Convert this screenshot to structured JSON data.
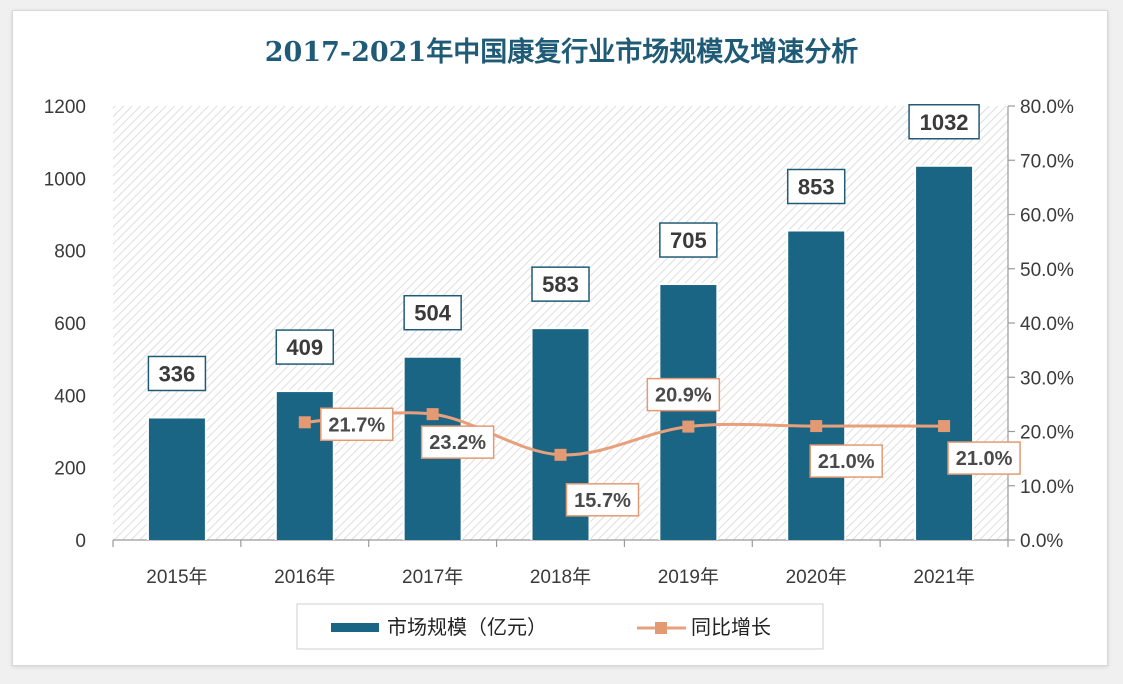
{
  "chart_data": {
    "type": "bar",
    "title": "2017-2021年中国康复行业市场规模及增速分析",
    "categories": [
      "2015年",
      "2016年",
      "2017年",
      "2018年",
      "2019年",
      "2020年",
      "2021年"
    ],
    "series": [
      {
        "name": "市场规模（亿元）",
        "type": "bar",
        "axis": "left",
        "color": "#1b6584",
        "values": [
          336,
          409,
          504,
          583,
          705,
          853,
          1032
        ]
      },
      {
        "name": "同比增长",
        "type": "line",
        "axis": "right",
        "color": "#e8a07c",
        "values": [
          null,
          21.7,
          23.2,
          15.7,
          20.9,
          21.0,
          21.0
        ],
        "labels": [
          null,
          "21.7%",
          "23.2%",
          "15.7%",
          "20.9%",
          "21.0%",
          "21.0%"
        ]
      }
    ],
    "y_left": {
      "range": [
        0,
        1200
      ],
      "ticks": [
        "0",
        "200",
        "400",
        "600",
        "800",
        "1000",
        "1200"
      ]
    },
    "y_right": {
      "range": [
        0,
        80
      ],
      "ticks": [
        "0.0%",
        "10.0%",
        "20.0%",
        "30.0%",
        "40.0%",
        "50.0%",
        "60.0%",
        "70.0%",
        "80.0%"
      ]
    },
    "legend": "bottom"
  }
}
